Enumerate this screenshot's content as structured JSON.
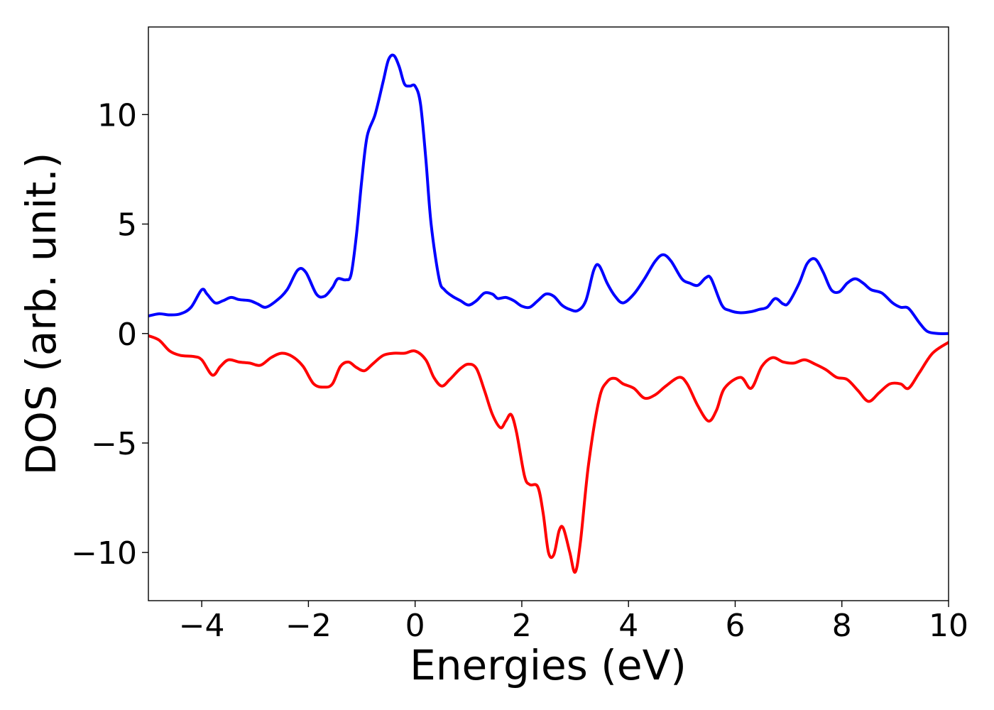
{
  "chart_data": {
    "type": "line",
    "title": "",
    "xlabel": "Energies (eV)",
    "ylabel": "DOS (arb. unit.)",
    "xlim": [
      -5,
      10
    ],
    "ylim": [
      -12.2,
      14
    ],
    "xticks": [
      -4,
      -2,
      0,
      2,
      4,
      6,
      8,
      10
    ],
    "xtick_labels": [
      "−4",
      "−2",
      "0",
      "2",
      "4",
      "6",
      "8",
      "10"
    ],
    "yticks": [
      -10,
      -5,
      0,
      5,
      10
    ],
    "ytick_labels": [
      "−10",
      "−5",
      "0",
      "5",
      "10"
    ],
    "grid": false,
    "legend": "none",
    "series": [
      {
        "color": "#0000ff",
        "points": [
          [
            -5.0,
            0.8
          ],
          [
            -4.8,
            0.9
          ],
          [
            -4.6,
            0.85
          ],
          [
            -4.4,
            0.9
          ],
          [
            -4.2,
            1.2
          ],
          [
            -4.0,
            2.0
          ],
          [
            -3.9,
            1.8
          ],
          [
            -3.75,
            1.4
          ],
          [
            -3.6,
            1.5
          ],
          [
            -3.45,
            1.65
          ],
          [
            -3.3,
            1.55
          ],
          [
            -3.1,
            1.5
          ],
          [
            -2.95,
            1.35
          ],
          [
            -2.8,
            1.2
          ],
          [
            -2.6,
            1.5
          ],
          [
            -2.4,
            2.0
          ],
          [
            -2.2,
            2.9
          ],
          [
            -2.05,
            2.8
          ],
          [
            -1.85,
            1.8
          ],
          [
            -1.7,
            1.7
          ],
          [
            -1.55,
            2.1
          ],
          [
            -1.45,
            2.5
          ],
          [
            -1.3,
            2.45
          ],
          [
            -1.2,
            2.7
          ],
          [
            -1.1,
            4.5
          ],
          [
            -1.0,
            7.0
          ],
          [
            -0.9,
            9.0
          ],
          [
            -0.75,
            10.0
          ],
          [
            -0.6,
            11.5
          ],
          [
            -0.5,
            12.5
          ],
          [
            -0.4,
            12.7
          ],
          [
            -0.3,
            12.2
          ],
          [
            -0.2,
            11.4
          ],
          [
            -0.1,
            11.3
          ],
          [
            0.0,
            11.3
          ],
          [
            0.1,
            10.5
          ],
          [
            0.2,
            8.0
          ],
          [
            0.3,
            5.0
          ],
          [
            0.45,
            2.5
          ],
          [
            0.55,
            2.0
          ],
          [
            0.7,
            1.7
          ],
          [
            0.85,
            1.5
          ],
          [
            1.0,
            1.3
          ],
          [
            1.15,
            1.5
          ],
          [
            1.3,
            1.85
          ],
          [
            1.45,
            1.8
          ],
          [
            1.55,
            1.6
          ],
          [
            1.7,
            1.65
          ],
          [
            1.85,
            1.5
          ],
          [
            2.0,
            1.25
          ],
          [
            2.15,
            1.2
          ],
          [
            2.3,
            1.5
          ],
          [
            2.45,
            1.8
          ],
          [
            2.6,
            1.7
          ],
          [
            2.75,
            1.3
          ],
          [
            2.9,
            1.1
          ],
          [
            3.05,
            1.05
          ],
          [
            3.2,
            1.5
          ],
          [
            3.35,
            2.9
          ],
          [
            3.45,
            3.1
          ],
          [
            3.6,
            2.3
          ],
          [
            3.75,
            1.7
          ],
          [
            3.9,
            1.4
          ],
          [
            4.1,
            1.8
          ],
          [
            4.3,
            2.5
          ],
          [
            4.5,
            3.3
          ],
          [
            4.65,
            3.6
          ],
          [
            4.8,
            3.3
          ],
          [
            5.0,
            2.5
          ],
          [
            5.15,
            2.3
          ],
          [
            5.3,
            2.2
          ],
          [
            5.45,
            2.55
          ],
          [
            5.55,
            2.5
          ],
          [
            5.75,
            1.3
          ],
          [
            5.9,
            1.05
          ],
          [
            6.1,
            0.95
          ],
          [
            6.3,
            1.0
          ],
          [
            6.45,
            1.1
          ],
          [
            6.6,
            1.2
          ],
          [
            6.75,
            1.6
          ],
          [
            6.9,
            1.35
          ],
          [
            7.0,
            1.4
          ],
          [
            7.2,
            2.3
          ],
          [
            7.35,
            3.2
          ],
          [
            7.5,
            3.4
          ],
          [
            7.65,
            2.8
          ],
          [
            7.8,
            2.0
          ],
          [
            7.95,
            1.9
          ],
          [
            8.1,
            2.3
          ],
          [
            8.25,
            2.5
          ],
          [
            8.4,
            2.3
          ],
          [
            8.55,
            2.0
          ],
          [
            8.75,
            1.85
          ],
          [
            8.95,
            1.4
          ],
          [
            9.1,
            1.2
          ],
          [
            9.25,
            1.15
          ],
          [
            9.45,
            0.5
          ],
          [
            9.6,
            0.1
          ],
          [
            9.8,
            0.0
          ],
          [
            10.0,
            0.0
          ]
        ]
      },
      {
        "color": "#ff0000",
        "points": [
          [
            -5.0,
            -0.1
          ],
          [
            -4.8,
            -0.3
          ],
          [
            -4.6,
            -0.8
          ],
          [
            -4.4,
            -1.0
          ],
          [
            -4.15,
            -1.05
          ],
          [
            -4.0,
            -1.2
          ],
          [
            -3.8,
            -1.9
          ],
          [
            -3.65,
            -1.5
          ],
          [
            -3.5,
            -1.2
          ],
          [
            -3.3,
            -1.3
          ],
          [
            -3.1,
            -1.35
          ],
          [
            -2.9,
            -1.45
          ],
          [
            -2.7,
            -1.1
          ],
          [
            -2.5,
            -0.9
          ],
          [
            -2.3,
            -1.05
          ],
          [
            -2.1,
            -1.5
          ],
          [
            -1.9,
            -2.3
          ],
          [
            -1.7,
            -2.45
          ],
          [
            -1.55,
            -2.3
          ],
          [
            -1.4,
            -1.5
          ],
          [
            -1.25,
            -1.3
          ],
          [
            -1.1,
            -1.55
          ],
          [
            -0.95,
            -1.7
          ],
          [
            -0.8,
            -1.4
          ],
          [
            -0.6,
            -1.0
          ],
          [
            -0.4,
            -0.9
          ],
          [
            -0.2,
            -0.9
          ],
          [
            0.0,
            -0.8
          ],
          [
            0.2,
            -1.2
          ],
          [
            0.35,
            -2.0
          ],
          [
            0.5,
            -2.4
          ],
          [
            0.65,
            -2.1
          ],
          [
            0.85,
            -1.6
          ],
          [
            1.0,
            -1.4
          ],
          [
            1.15,
            -1.6
          ],
          [
            1.3,
            -2.6
          ],
          [
            1.45,
            -3.7
          ],
          [
            1.6,
            -4.3
          ],
          [
            1.7,
            -4.0
          ],
          [
            1.8,
            -3.7
          ],
          [
            1.9,
            -4.5
          ],
          [
            2.05,
            -6.5
          ],
          [
            2.15,
            -6.9
          ],
          [
            2.3,
            -7.0
          ],
          [
            2.4,
            -8.2
          ],
          [
            2.5,
            -10.0
          ],
          [
            2.6,
            -10.1
          ],
          [
            2.7,
            -9.0
          ],
          [
            2.78,
            -8.9
          ],
          [
            2.9,
            -10.0
          ],
          [
            3.0,
            -10.9
          ],
          [
            3.1,
            -9.5
          ],
          [
            3.25,
            -6.0
          ],
          [
            3.45,
            -3.0
          ],
          [
            3.6,
            -2.2
          ],
          [
            3.75,
            -2.05
          ],
          [
            3.9,
            -2.3
          ],
          [
            4.1,
            -2.5
          ],
          [
            4.3,
            -2.95
          ],
          [
            4.5,
            -2.8
          ],
          [
            4.7,
            -2.4
          ],
          [
            4.95,
            -2.0
          ],
          [
            5.1,
            -2.3
          ],
          [
            5.3,
            -3.3
          ],
          [
            5.5,
            -4.0
          ],
          [
            5.65,
            -3.5
          ],
          [
            5.8,
            -2.5
          ],
          [
            6.1,
            -2.0
          ],
          [
            6.3,
            -2.5
          ],
          [
            6.5,
            -1.5
          ],
          [
            6.7,
            -1.1
          ],
          [
            6.9,
            -1.3
          ],
          [
            7.1,
            -1.35
          ],
          [
            7.3,
            -1.2
          ],
          [
            7.5,
            -1.4
          ],
          [
            7.7,
            -1.65
          ],
          [
            7.9,
            -2.0
          ],
          [
            8.1,
            -2.1
          ],
          [
            8.3,
            -2.6
          ],
          [
            8.5,
            -3.1
          ],
          [
            8.7,
            -2.7
          ],
          [
            8.9,
            -2.3
          ],
          [
            9.1,
            -2.3
          ],
          [
            9.25,
            -2.5
          ],
          [
            9.45,
            -1.8
          ],
          [
            9.7,
            -0.9
          ],
          [
            10.0,
            -0.4
          ]
        ]
      }
    ]
  }
}
